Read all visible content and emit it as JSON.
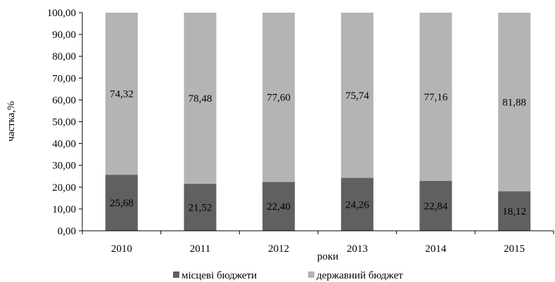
{
  "chart_data": {
    "type": "bar",
    "stacked": true,
    "categories": [
      "2010",
      "2011",
      "2012",
      "2013",
      "2014",
      "2015"
    ],
    "series": [
      {
        "name": "місцеві бюджети",
        "color": "#606060",
        "values": [
          25.68,
          21.52,
          22.4,
          24.26,
          22.84,
          18.12
        ],
        "labels": [
          "25,68",
          "21,52",
          "22,40",
          "24,26",
          "22,84",
          "18,12"
        ]
      },
      {
        "name": "державний бюджет",
        "color": "#b4b4b4",
        "values": [
          74.32,
          78.48,
          77.6,
          75.74,
          77.16,
          81.88
        ],
        "labels": [
          "74,32",
          "78,48",
          "77,60",
          "75,74",
          "77,16",
          "81,88"
        ]
      }
    ],
    "xlabel": "роки",
    "ylabel": "частка,%",
    "ylim": [
      0,
      100
    ],
    "yticks": [
      0,
      10,
      20,
      30,
      40,
      50,
      60,
      70,
      80,
      90,
      100
    ],
    "ytick_labels": [
      "0,00",
      "10,00",
      "20,00",
      "30,00",
      "40,00",
      "50,00",
      "60,00",
      "70,00",
      "80,00",
      "90,00",
      "100,00"
    ],
    "grid": false,
    "legend": "bottom"
  }
}
